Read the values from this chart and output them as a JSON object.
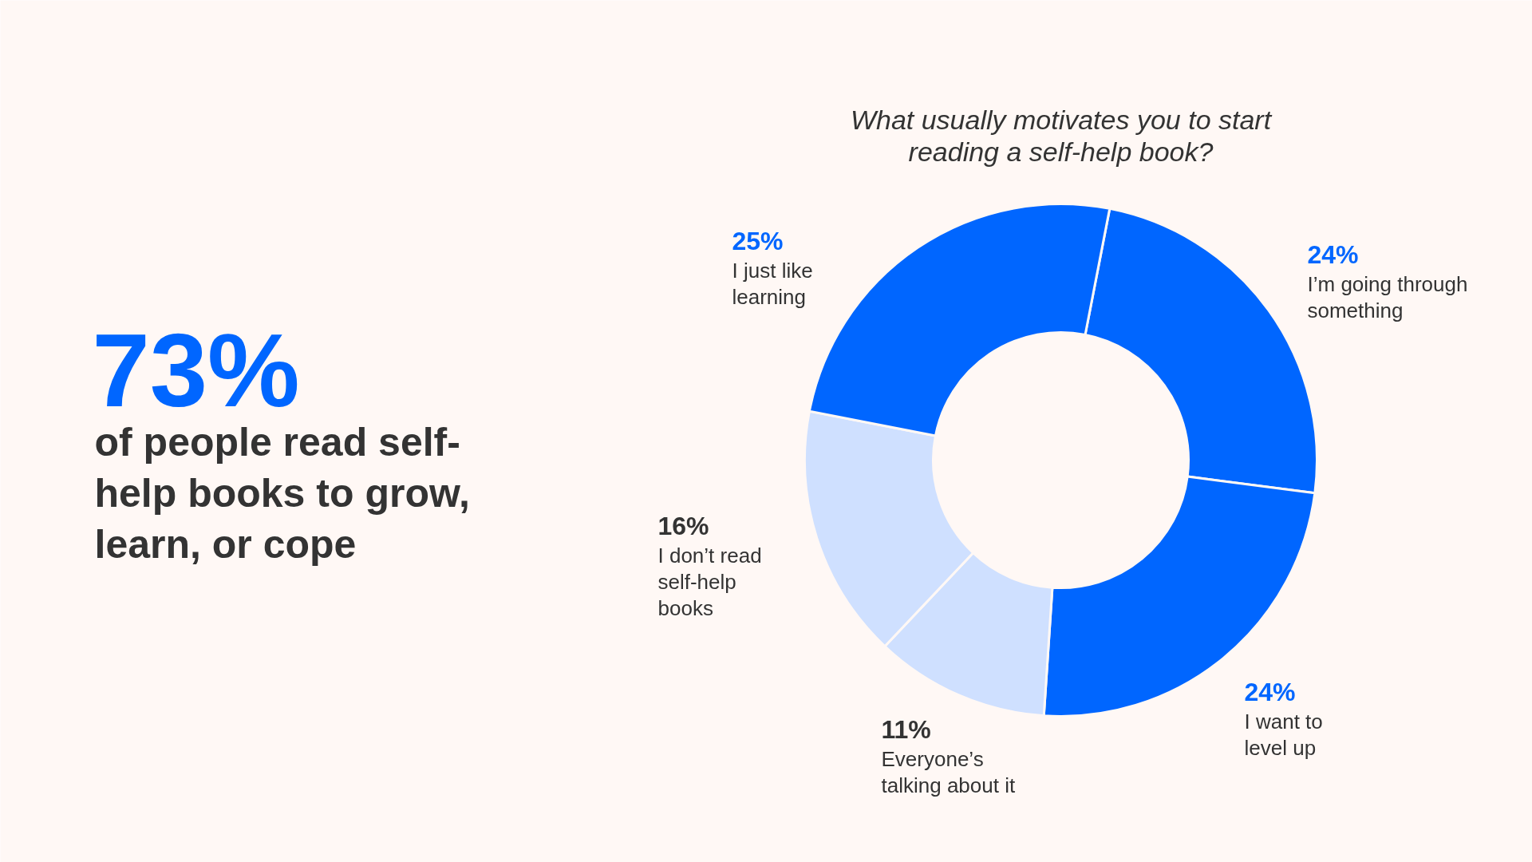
{
  "chart_data": {
    "type": "donut",
    "title": "What usually motivates you to start reading a self-help book?",
    "categories": [
      "I’m going through something",
      "I want to level up",
      "Everyone’s talking about it",
      "I don’t read self-help books",
      "I just like learning"
    ],
    "values": [
      24,
      24,
      11,
      16,
      25
    ],
    "colors": [
      "#0066ff",
      "#0066ff",
      "#cfe0ff",
      "#cfe0ff",
      "#0066ff"
    ],
    "value_labels": [
      "24%",
      "24%",
      "11%",
      "16%",
      "25%"
    ],
    "annotations": [
      "73%",
      "of people read self-help books to grow, learn, or cope"
    ]
  }
}
